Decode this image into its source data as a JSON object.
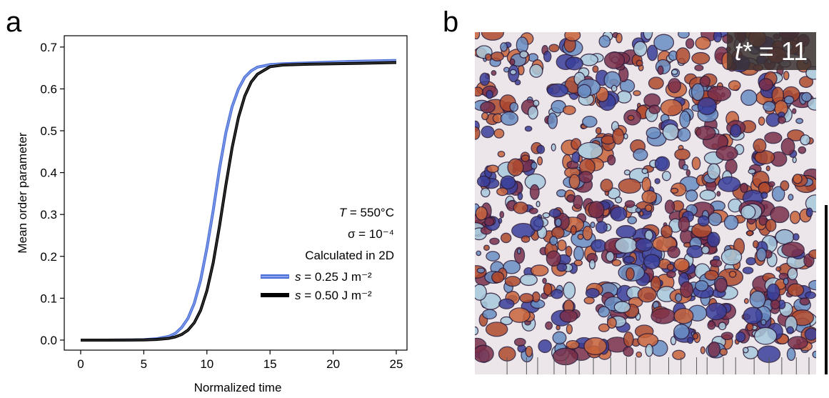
{
  "panel_labels": [
    "a",
    "b"
  ],
  "chart_data": {
    "type": "line",
    "xlabel": "Normalized time",
    "ylabel": "Mean order parameter",
    "x": [
      0,
      2,
      4,
      5,
      6,
      7,
      7.5,
      8,
      8.5,
      9,
      9.5,
      10,
      10.5,
      11,
      11.5,
      12,
      12.5,
      13,
      13.5,
      14,
      15,
      16,
      18,
      20,
      22,
      25
    ],
    "series": [
      {
        "name": "s = 0.25 J m⁻²",
        "color": "#4a6fd6",
        "values": [
          0,
          0,
          0.0003,
          0.001,
          0.003,
          0.009,
          0.016,
          0.03,
          0.052,
          0.088,
          0.143,
          0.22,
          0.31,
          0.41,
          0.495,
          0.558,
          0.6,
          0.628,
          0.643,
          0.652,
          0.658,
          0.66,
          0.662,
          0.664,
          0.666,
          0.668
        ]
      },
      {
        "name": "s = 0.50 J m⁻²",
        "color": "#000000",
        "values": [
          0,
          0,
          0.0001,
          0.0004,
          0.0013,
          0.0042,
          0.0075,
          0.0134,
          0.0237,
          0.0415,
          0.071,
          0.118,
          0.185,
          0.273,
          0.37,
          0.46,
          0.532,
          0.583,
          0.616,
          0.635,
          0.653,
          0.657,
          0.659,
          0.66,
          0.661,
          0.663
        ]
      }
    ],
    "annotations": [
      "T = 550°C",
      "σ = 10⁻⁴",
      "Calculated in 2D"
    ],
    "xlim": [
      -1.3,
      25.85
    ],
    "ylim": [
      -0.024,
      0.727
    ],
    "xticks": [
      0,
      5,
      10,
      15,
      20,
      25
    ],
    "yticks": [
      {
        "value": 0,
        "label": "0.0"
      },
      0.1,
      0.2,
      0.3,
      0.4,
      0.5,
      0.6,
      0.7
    ]
  },
  "image_panel": {
    "annotation": "t* = 11"
  }
}
